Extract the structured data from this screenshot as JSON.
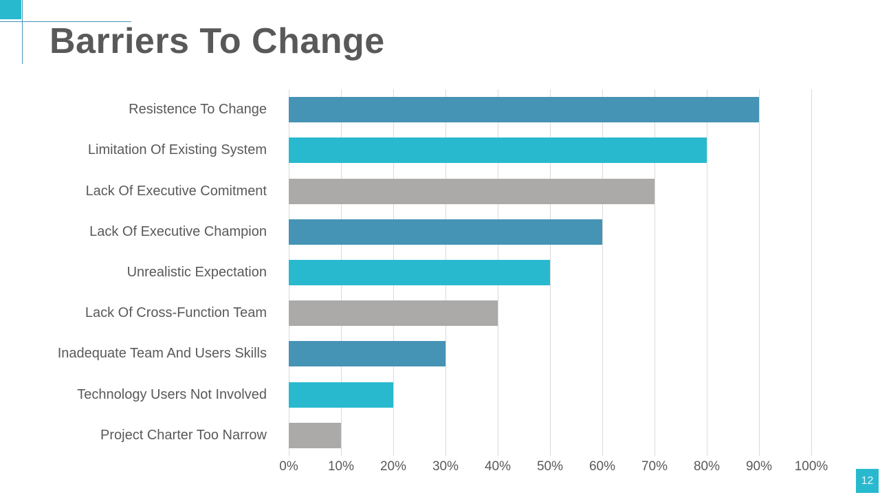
{
  "slide": {
    "title": "Barriers To Change",
    "page_number": "12"
  },
  "colors": {
    "accent_cyan": "#29B9CE",
    "accent_blue": "#4593B5",
    "accent_gray": "#ACA9A9",
    "text_gray": "#595959",
    "gridline": "#D9D9D9",
    "badge_text": "#E8F6F9"
  },
  "chart_data": {
    "type": "bar",
    "orientation": "horizontal",
    "title": "Barriers To Change",
    "categories": [
      "Resistence To Change",
      "Limitation Of Existing System",
      "Lack Of Executive Comitment",
      "Lack Of Executive Champion",
      "Unrealistic Expectation",
      "Lack Of Cross-Function Team",
      "Inadequate Team And Users Skills",
      "Technology Users Not Involved",
      "Project Charter Too Narrow"
    ],
    "values": [
      90,
      80,
      70,
      60,
      50,
      40,
      30,
      20,
      10
    ],
    "unit": "%",
    "bar_color_cycle": [
      "#4593B5",
      "#29B9CE",
      "#ACA9A9"
    ],
    "x_ticks": [
      "0%",
      "10%",
      "20%",
      "30%",
      "40%",
      "50%",
      "60%",
      "70%",
      "80%",
      "90%",
      "100%"
    ],
    "xlim": [
      0,
      100
    ],
    "xlabel": "",
    "ylabel": "",
    "grid": true,
    "legend": false,
    "data_labels": false
  }
}
